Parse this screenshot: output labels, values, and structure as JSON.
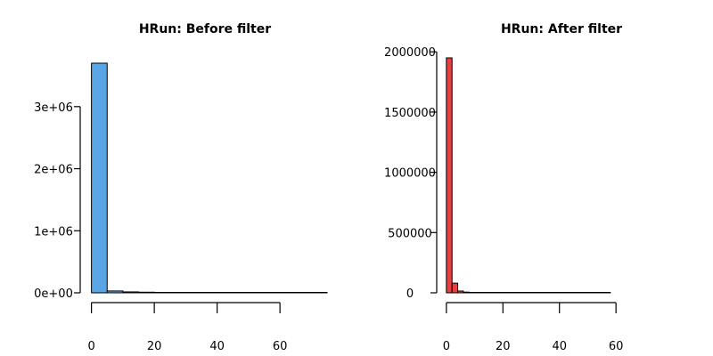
{
  "chart_data": [
    {
      "type": "bar",
      "title": "HRun: Before filter",
      "xlabel": "",
      "ylabel": "",
      "color": "#5aa5e6",
      "bins": [
        {
          "x0": 0,
          "x1": 5,
          "count": 3700000
        },
        {
          "x0": 5,
          "x1": 10,
          "count": 30000
        },
        {
          "x0": 10,
          "x1": 15,
          "count": 15000
        },
        {
          "x0": 15,
          "x1": 20,
          "count": 10000
        },
        {
          "x0": 20,
          "x1": 25,
          "count": 6000
        },
        {
          "x0": 25,
          "x1": 30,
          "count": 4000
        },
        {
          "x0": 30,
          "x1": 35,
          "count": 2500
        },
        {
          "x0": 35,
          "x1": 40,
          "count": 1800
        },
        {
          "x0": 40,
          "x1": 45,
          "count": 1200
        },
        {
          "x0": 45,
          "x1": 50,
          "count": 900
        },
        {
          "x0": 50,
          "x1": 55,
          "count": 700
        },
        {
          "x0": 55,
          "x1": 60,
          "count": 500
        },
        {
          "x0": 60,
          "x1": 65,
          "count": 400
        },
        {
          "x0": 65,
          "x1": 70,
          "count": 300
        },
        {
          "x0": 70,
          "x1": 75,
          "count": 200
        }
      ],
      "xlim": [
        -5,
        75
      ],
      "ylim": [
        0,
        3700000
      ],
      "xticks": [
        {
          "value": 0,
          "label": "0"
        },
        {
          "value": 20,
          "label": "20"
        },
        {
          "value": 40,
          "label": "40"
        },
        {
          "value": 60,
          "label": "60"
        }
      ],
      "yticks": [
        {
          "value": 0,
          "label": "0e+00"
        },
        {
          "value": 1000000,
          "label": "1e+06"
        },
        {
          "value": 2000000,
          "label": "2e+06"
        },
        {
          "value": 3000000,
          "label": "3e+06"
        }
      ]
    },
    {
      "type": "bar",
      "title": "HRun: After filter",
      "xlabel": "",
      "ylabel": "",
      "color": "#e84040",
      "bins": [
        {
          "x0": 0,
          "x1": 2,
          "count": 1950000
        },
        {
          "x0": 2,
          "x1": 4,
          "count": 80000
        },
        {
          "x0": 4,
          "x1": 6,
          "count": 15000
        },
        {
          "x0": 6,
          "x1": 8,
          "count": 6000
        },
        {
          "x0": 8,
          "x1": 10,
          "count": 3000
        },
        {
          "x0": 10,
          "x1": 12,
          "count": 2000
        },
        {
          "x0": 12,
          "x1": 14,
          "count": 1500
        },
        {
          "x0": 14,
          "x1": 16,
          "count": 1200
        },
        {
          "x0": 16,
          "x1": 18,
          "count": 1000
        },
        {
          "x0": 18,
          "x1": 20,
          "count": 900
        },
        {
          "x0": 20,
          "x1": 22,
          "count": 800
        },
        {
          "x0": 22,
          "x1": 24,
          "count": 700
        },
        {
          "x0": 24,
          "x1": 26,
          "count": 600
        },
        {
          "x0": 26,
          "x1": 28,
          "count": 550
        },
        {
          "x0": 28,
          "x1": 30,
          "count": 500
        },
        {
          "x0": 30,
          "x1": 32,
          "count": 450
        },
        {
          "x0": 32,
          "x1": 34,
          "count": 400
        },
        {
          "x0": 34,
          "x1": 36,
          "count": 350
        },
        {
          "x0": 36,
          "x1": 38,
          "count": 300
        },
        {
          "x0": 38,
          "x1": 40,
          "count": 280
        },
        {
          "x0": 40,
          "x1": 42,
          "count": 250
        },
        {
          "x0": 42,
          "x1": 44,
          "count": 220
        },
        {
          "x0": 44,
          "x1": 46,
          "count": 200
        },
        {
          "x0": 46,
          "x1": 48,
          "count": 180
        },
        {
          "x0": 48,
          "x1": 50,
          "count": 160
        },
        {
          "x0": 50,
          "x1": 52,
          "count": 140
        },
        {
          "x0": 52,
          "x1": 54,
          "count": 120
        },
        {
          "x0": 54,
          "x1": 56,
          "count": 100
        },
        {
          "x0": 56,
          "x1": 58,
          "count": 80
        }
      ],
      "xlim": [
        -5,
        65
      ],
      "ylim": [
        0,
        1950000
      ],
      "xticks": [
        {
          "value": 0,
          "label": "0"
        },
        {
          "value": 20,
          "label": "20"
        },
        {
          "value": 40,
          "label": "40"
        },
        {
          "value": 60,
          "label": "60"
        }
      ],
      "yticks": [
        {
          "value": 0,
          "label": "0"
        },
        {
          "value": 500000,
          "label": "500000"
        },
        {
          "value": 1000000,
          "label": "1000000"
        },
        {
          "value": 1500000,
          "label": "1500000"
        },
        {
          "value": 2000000,
          "label": "2000000"
        }
      ]
    }
  ]
}
